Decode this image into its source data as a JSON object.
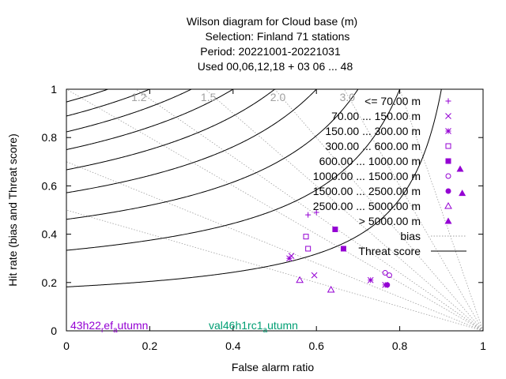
{
  "chart_data": {
    "type": "scatter",
    "title_lines": [
      "Wilson diagram  for Cloud base (m)",
      "Selection: Finland     71 stations",
      "Period: 20221001-20221031",
      "Used  00,06,12,18  + 03 06 ... 48"
    ],
    "xlabel": "False alarm ratio",
    "ylabel": "Hit rate (bias and Threat score)",
    "xlim": [
      0,
      1
    ],
    "ylim": [
      0,
      1
    ],
    "x_ticks": [
      "0",
      "0.2",
      "0.4",
      "0.6",
      "0.8",
      "1"
    ],
    "y_ticks": [
      "0",
      "0.2",
      "0.4",
      "0.6",
      "0.8",
      "1"
    ],
    "grid": false,
    "legend_position": "top-right",
    "bias_labels": [
      "1.2",
      "1.5",
      "2.0",
      "3.0"
    ],
    "bias_lines": [
      0.5,
      0.7,
      1.0,
      1.2,
      1.5,
      2.0,
      3.0,
      5.0
    ],
    "threat_score_curves": [
      0.1,
      0.2,
      0.3,
      0.4,
      0.5,
      0.6,
      0.7,
      0.8,
      0.9
    ],
    "legend_static": [
      {
        "label": "bias",
        "style": "dotted",
        "color": "#a0a0a0"
      },
      {
        "label": "Threat score",
        "style": "solid",
        "color": "#000000"
      }
    ],
    "series": [
      {
        "name": "<= 70.00 m",
        "marker": "plus",
        "color": "#9400d3",
        "points": [
          {
            "x": 0.6,
            "y": 0.49
          },
          {
            "x": 0.58,
            "y": 0.48
          }
        ]
      },
      {
        "name": "70.00 ... 150.00 m",
        "marker": "cross",
        "color": "#9400d3",
        "points": [
          {
            "x": 0.54,
            "y": 0.31
          },
          {
            "x": 0.595,
            "y": 0.23
          }
        ]
      },
      {
        "name": "150.00 ... 300.00 m",
        "marker": "star",
        "color": "#9400d3",
        "points": [
          {
            "x": 0.535,
            "y": 0.3
          },
          {
            "x": 0.73,
            "y": 0.21
          },
          {
            "x": 0.765,
            "y": 0.19
          }
        ]
      },
      {
        "name": "300.00 ... 600.00 m",
        "marker": "box",
        "color": "#9400d3",
        "points": [
          {
            "x": 0.575,
            "y": 0.39
          },
          {
            "x": 0.58,
            "y": 0.34
          }
        ]
      },
      {
        "name": "600.00 ... 1000.00 m",
        "marker": "fbox",
        "color": "#9400d3",
        "points": [
          {
            "x": 0.645,
            "y": 0.42
          },
          {
            "x": 0.665,
            "y": 0.34
          }
        ]
      },
      {
        "name": "1000.00 ... 1500.00 m",
        "marker": "circle",
        "color": "#9400d3",
        "points": [
          {
            "x": 0.765,
            "y": 0.24
          },
          {
            "x": 0.775,
            "y": 0.23
          }
        ]
      },
      {
        "name": "1500.00 ... 2500.00 m",
        "marker": "fcircle",
        "color": "#9400d3",
        "points": [
          {
            "x": 0.77,
            "y": 0.19
          }
        ]
      },
      {
        "name": "2500.00 ... 5000.00 m",
        "marker": "triangle",
        "color": "#9400d3",
        "points": [
          {
            "x": 0.56,
            "y": 0.21
          },
          {
            "x": 0.635,
            "y": 0.17
          }
        ]
      },
      {
        "name": "> 5000.00 m",
        "marker": "ftriangle",
        "color": "#9400d3",
        "points": [
          {
            "x": 0.95,
            "y": 0.57
          },
          {
            "x": 0.945,
            "y": 0.67
          }
        ]
      }
    ],
    "annotations": [
      {
        "parts": [
          {
            "text": "43h22",
            "sub": false
          },
          {
            "text": "r",
            "sub": true
          },
          {
            "text": "ef",
            "sub": false
          },
          {
            "text": "a",
            "sub": true
          },
          {
            "text": "utumn",
            "sub": false
          }
        ],
        "color": "#9400d3"
      },
      {
        "parts": [
          {
            "text": "val46h1rc1",
            "sub": false
          },
          {
            "text": "a",
            "sub": true
          },
          {
            "text": "utumn",
            "sub": false
          }
        ],
        "color": "#009e73"
      }
    ]
  }
}
